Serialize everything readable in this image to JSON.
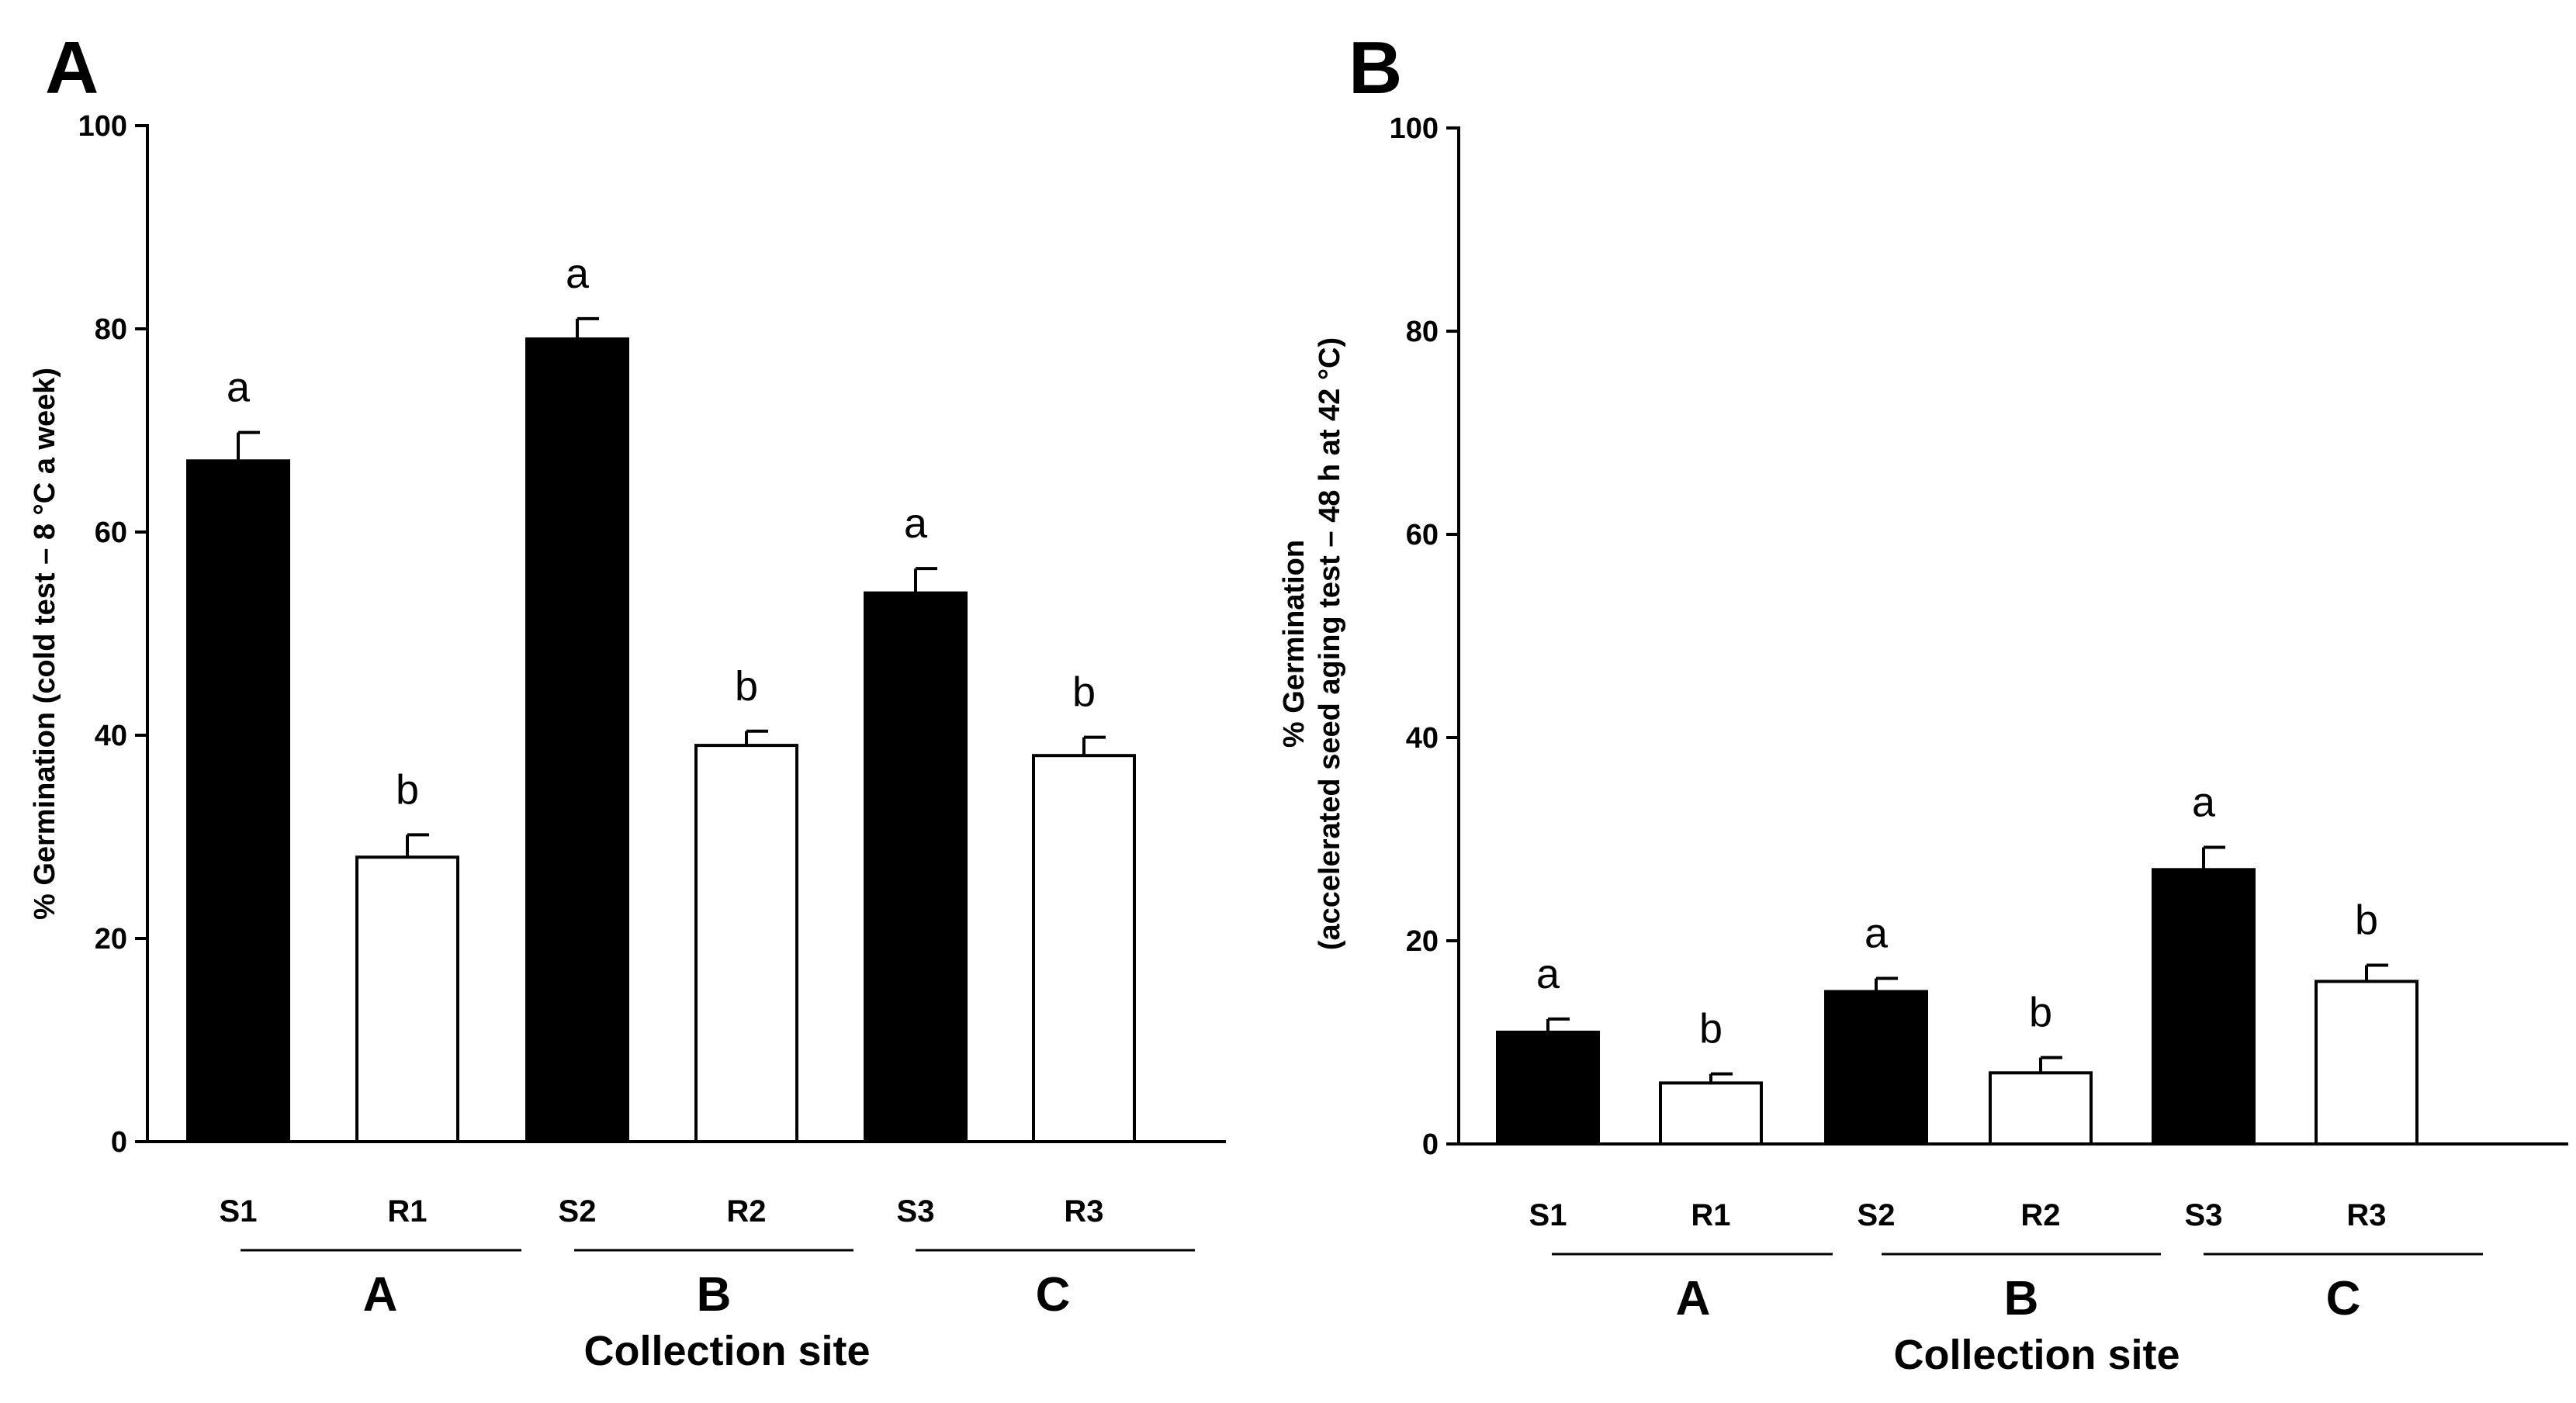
{
  "chart_data": [
    {
      "type": "bar",
      "panel_label": "A",
      "ylabel": "% Germination (cold test – 8 °C a week)",
      "ylabel_lines": [
        "% Germination (cold test – 8 °C a week)"
      ],
      "xlabel": "Collection site",
      "ylim": [
        0,
        100
      ],
      "yticks": [
        "0",
        "20",
        "40",
        "60",
        "80",
        "100"
      ],
      "categories": [
        "S1",
        "R1",
        "S2",
        "R2",
        "S3",
        "R3"
      ],
      "values": [
        67,
        28,
        79,
        39,
        54,
        38
      ],
      "errors": [
        2.8,
        2.2,
        2.0,
        1.4,
        2.4,
        1.8
      ],
      "fills": [
        "#000000",
        "#ffffff",
        "#000000",
        "#ffffff",
        "#000000",
        "#ffffff"
      ],
      "significance": [
        "a",
        "b",
        "a",
        "b",
        "a",
        "b"
      ],
      "groups": [
        "A",
        "B",
        "C"
      ]
    },
    {
      "type": "bar",
      "panel_label": "B",
      "ylabel": "% Germination (accelerated seed aging test – 48 h at 42 °C)",
      "ylabel_lines": [
        "% Germination",
        "(accelerated seed aging test – 48 h at 42 °C)"
      ],
      "xlabel": "Collection site",
      "ylim": [
        0,
        100
      ],
      "yticks": [
        "0",
        "20",
        "40",
        "60",
        "80",
        "100"
      ],
      "categories": [
        "S1",
        "R1",
        "S2",
        "R2",
        "S3",
        "R3"
      ],
      "values": [
        11,
        6,
        15,
        7,
        27,
        16
      ],
      "errors": [
        1.3,
        0.9,
        1.3,
        1.5,
        2.2,
        1.6
      ],
      "fills": [
        "#000000",
        "#ffffff",
        "#000000",
        "#ffffff",
        "#000000",
        "#ffffff"
      ],
      "significance": [
        "a",
        "b",
        "a",
        "b",
        "a",
        "b"
      ],
      "groups": [
        "A",
        "B",
        "C"
      ]
    }
  ]
}
